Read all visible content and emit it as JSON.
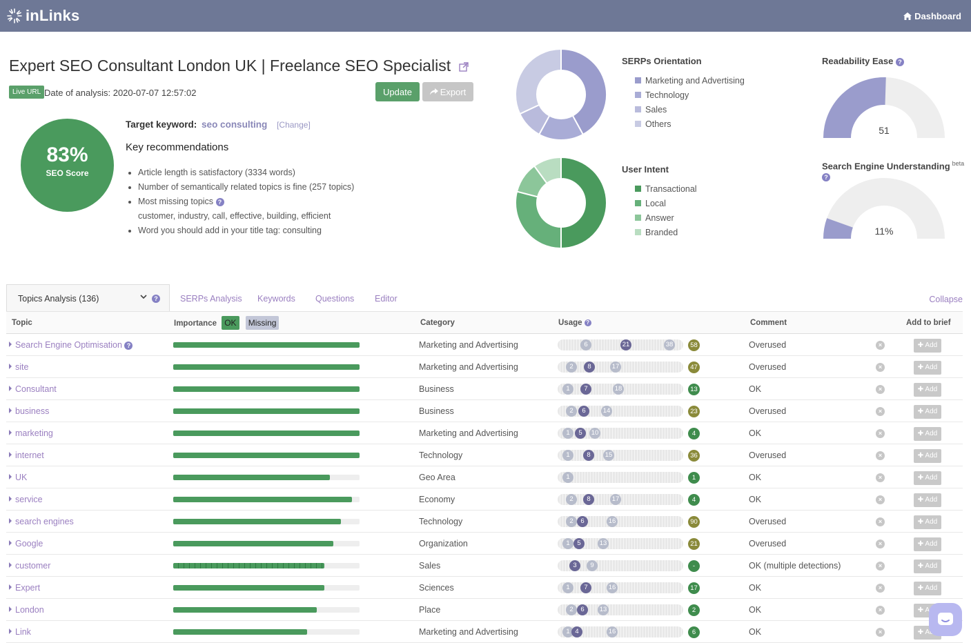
{
  "app": {
    "brand": "inLinks",
    "nav_dashboard": "Dashboard"
  },
  "header": {
    "title": "Expert SEO Consultant London UK | Freelance SEO Specialist",
    "live_url_badge": "Live URL",
    "analysis_date": "Date of analysis: 2020-07-07 12:57:02",
    "update_label": "Update",
    "export_label": "Export"
  },
  "score": {
    "value": "83%",
    "label": "SEO Score",
    "color": "#4a9a5d"
  },
  "target": {
    "label": "Target keyword:",
    "keyword": "seo consulting",
    "change": "[Change]"
  },
  "recommendations": {
    "title": "Key recommendations",
    "items": [
      "Article length is satisfactory (3334 words)",
      "Number of semantically related topics is fine (257 topics)",
      "Most missing topics",
      "customer, industry, call, effective, building, efficient",
      "Word you should add in your title tag: consulting"
    ]
  },
  "serps_orientation": {
    "title": "SERPs Orientation",
    "legend": [
      {
        "label": "Marketing and Advertising",
        "color": "#9a9ccc"
      },
      {
        "label": "Technology",
        "color": "#a9acd6"
      },
      {
        "label": "Sales",
        "color": "#b9bbdc"
      },
      {
        "label": "Others",
        "color": "#c8cbe3"
      }
    ],
    "slices": [
      42,
      16,
      10,
      32
    ]
  },
  "user_intent": {
    "title": "User Intent",
    "legend": [
      {
        "label": "Transactional",
        "color": "#4a9a5d"
      },
      {
        "label": "Local",
        "color": "#66b07a"
      },
      {
        "label": "Answer",
        "color": "#8cc69a"
      },
      {
        "label": "Branded",
        "color": "#b9ddc1"
      }
    ],
    "slices": [
      50,
      29,
      11,
      10
    ]
  },
  "readability": {
    "title": "Readability Ease",
    "value": "51",
    "fraction": 0.51
  },
  "understanding": {
    "title": "Search Engine Understanding",
    "beta": "beta",
    "value": "11%",
    "fraction": 0.11
  },
  "tabs": {
    "active": "Topics Analysis (136)",
    "items": [
      "SERPs Analysis",
      "Keywords",
      "Questions",
      "Editor"
    ],
    "collapse": "Collapse"
  },
  "table": {
    "headers": {
      "topic": "Topic",
      "importance": "Importance",
      "ok": "OK",
      "missing": "Missing",
      "category": "Category",
      "usage": "Usage",
      "comment": "Comment",
      "add_to_brief": "Add to brief"
    },
    "add_label": "Add",
    "rows": [
      {
        "topic": "Search Engine Optimisation",
        "help": true,
        "importance": 1.0,
        "category": "Marketing and Advertising",
        "usage": [
          {
            "v": "6",
            "pos": 0.2,
            "dark": false
          },
          {
            "v": "21",
            "pos": 0.55,
            "dark": true
          },
          {
            "v": "38",
            "pos": 0.93,
            "dark": false
          }
        ],
        "score": "58",
        "status": "over",
        "comment": "Overused"
      },
      {
        "topic": "site",
        "importance": 1.0,
        "category": "Marketing and Advertising",
        "usage": [
          {
            "v": "2",
            "pos": 0.07,
            "dark": false
          },
          {
            "v": "8",
            "pos": 0.23,
            "dark": true
          },
          {
            "v": "17",
            "pos": 0.46,
            "dark": false
          }
        ],
        "score": "47",
        "status": "over",
        "comment": "Overused"
      },
      {
        "topic": "Consultant",
        "importance": 1.0,
        "category": "Business",
        "usage": [
          {
            "v": "1",
            "pos": 0.04,
            "dark": false
          },
          {
            "v": "7",
            "pos": 0.2,
            "dark": true
          },
          {
            "v": "18",
            "pos": 0.48,
            "dark": false
          }
        ],
        "score": "13",
        "status": "ok",
        "comment": "OK"
      },
      {
        "topic": "business",
        "importance": 1.0,
        "category": "Business",
        "usage": [
          {
            "v": "2",
            "pos": 0.07,
            "dark": false
          },
          {
            "v": "6",
            "pos": 0.18,
            "dark": true
          },
          {
            "v": "14",
            "pos": 0.38,
            "dark": false
          }
        ],
        "score": "23",
        "status": "over",
        "comment": "Overused"
      },
      {
        "topic": "marketing",
        "importance": 1.0,
        "category": "Marketing and Advertising",
        "usage": [
          {
            "v": "1",
            "pos": 0.04,
            "dark": false
          },
          {
            "v": "5",
            "pos": 0.15,
            "dark": true
          },
          {
            "v": "10",
            "pos": 0.28,
            "dark": false
          }
        ],
        "score": "4",
        "status": "ok",
        "comment": "OK"
      },
      {
        "topic": "internet",
        "importance": 1.0,
        "category": "Technology",
        "usage": [
          {
            "v": "1",
            "pos": 0.04,
            "dark": false
          },
          {
            "v": "8",
            "pos": 0.22,
            "dark": true
          },
          {
            "v": "15",
            "pos": 0.4,
            "dark": false
          }
        ],
        "score": "36",
        "status": "over",
        "comment": "Overused"
      },
      {
        "topic": "UK",
        "importance": 0.84,
        "category": "Geo Area",
        "usage": [
          {
            "v": "1",
            "pos": 0.04,
            "dark": false
          }
        ],
        "score": "1",
        "status": "ok",
        "comment": "OK"
      },
      {
        "topic": "service",
        "importance": 0.96,
        "category": "Economy",
        "usage": [
          {
            "v": "2",
            "pos": 0.07,
            "dark": false
          },
          {
            "v": "8",
            "pos": 0.22,
            "dark": true
          },
          {
            "v": "17",
            "pos": 0.46,
            "dark": false
          }
        ],
        "score": "4",
        "status": "ok",
        "comment": "OK"
      },
      {
        "topic": "search engines",
        "importance": 0.9,
        "category": "Technology",
        "usage": [
          {
            "v": "2",
            "pos": 0.07,
            "dark": false
          },
          {
            "v": "6",
            "pos": 0.17,
            "dark": true
          },
          {
            "v": "16",
            "pos": 0.43,
            "dark": false
          }
        ],
        "score": "90",
        "status": "over",
        "comment": "Overused"
      },
      {
        "topic": "Google",
        "importance": 0.86,
        "category": "Organization",
        "usage": [
          {
            "v": "1",
            "pos": 0.04,
            "dark": false
          },
          {
            "v": "5",
            "pos": 0.14,
            "dark": true
          },
          {
            "v": "13",
            "pos": 0.35,
            "dark": false
          }
        ],
        "score": "21",
        "status": "over",
        "comment": "Overused"
      },
      {
        "topic": "customer",
        "importance": 0.81,
        "striped": true,
        "category": "Sales",
        "usage": [
          {
            "v": "3",
            "pos": 0.1,
            "dark": true
          },
          {
            "v": "9",
            "pos": 0.25,
            "dark": false
          }
        ],
        "score": "-",
        "status": "ok",
        "comment": "OK (multiple detections)"
      },
      {
        "topic": "Expert",
        "importance": 0.81,
        "category": "Sciences",
        "usage": [
          {
            "v": "1",
            "pos": 0.04,
            "dark": false
          },
          {
            "v": "7",
            "pos": 0.2,
            "dark": true
          },
          {
            "v": "16",
            "pos": 0.43,
            "dark": false
          }
        ],
        "score": "17",
        "status": "ok",
        "comment": "OK"
      },
      {
        "topic": "London",
        "importance": 0.77,
        "category": "Place",
        "usage": [
          {
            "v": "2",
            "pos": 0.07,
            "dark": false
          },
          {
            "v": "6",
            "pos": 0.17,
            "dark": true
          },
          {
            "v": "13",
            "pos": 0.35,
            "dark": false
          }
        ],
        "score": "2",
        "status": "ok",
        "comment": "OK"
      },
      {
        "topic": "Link",
        "importance": 0.72,
        "category": "Marketing and Advertising",
        "usage": [
          {
            "v": "1",
            "pos": 0.04,
            "dark": false
          },
          {
            "v": "4",
            "pos": 0.12,
            "dark": true
          },
          {
            "v": "16",
            "pos": 0.43,
            "dark": false
          }
        ],
        "score": "6",
        "status": "ok",
        "comment": "OK"
      }
    ]
  }
}
